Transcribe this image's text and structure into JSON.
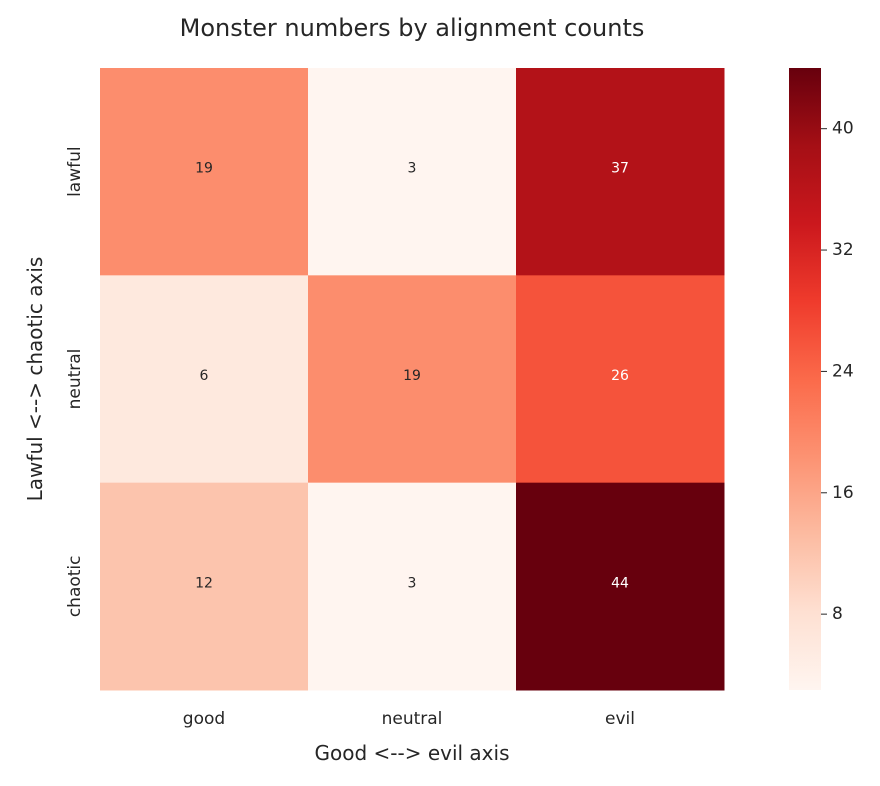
{
  "chart_data": {
    "type": "heatmap",
    "title": "Monster numbers by alignment counts",
    "xlabel": "Good <--> evil axis",
    "ylabel": "Lawful <--> chaotic axis",
    "x_categories": [
      "good",
      "neutral",
      "evil"
    ],
    "y_categories": [
      "lawful",
      "neutral",
      "chaotic"
    ],
    "values": [
      [
        19,
        3,
        37
      ],
      [
        6,
        19,
        26
      ],
      [
        12,
        3,
        44
      ]
    ],
    "colorbar": {
      "colormap": "Reds",
      "range": [
        3,
        44
      ],
      "ticks": [
        8,
        16,
        24,
        32,
        40
      ]
    }
  }
}
